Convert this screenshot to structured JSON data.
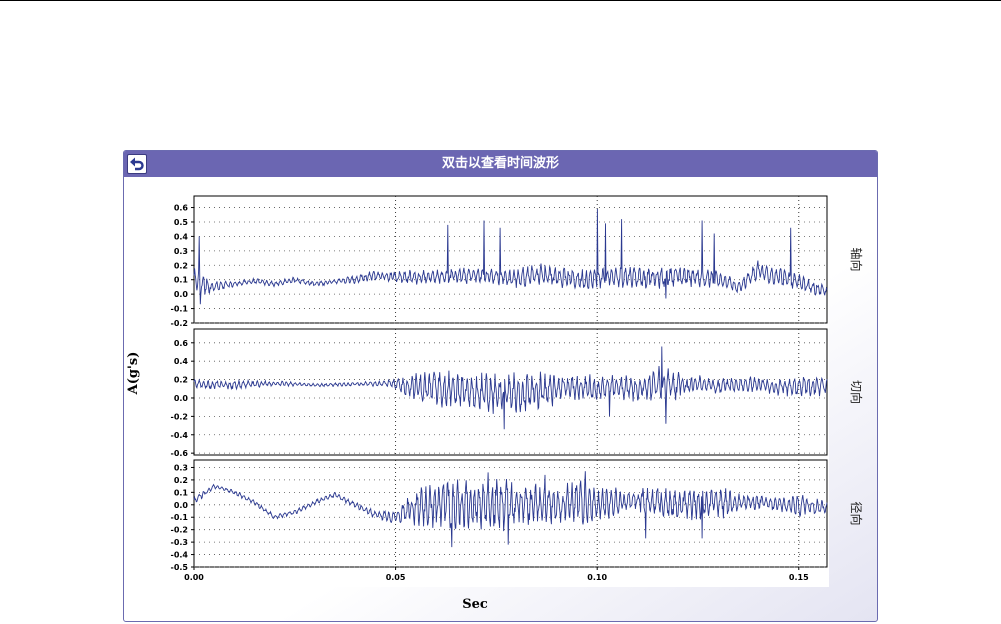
{
  "window": {
    "title": "双击以查看时间波形",
    "back_icon": "back-arrow-icon"
  },
  "colors": {
    "titlebar": "#6b66b2",
    "trace": "#2b3990",
    "panel_border": "#6b6bb0"
  },
  "chart_data": {
    "type": "line",
    "xlabel": "Sec",
    "ylabel": "A(g's)",
    "xlim": [
      0,
      0.157
    ],
    "xticks": [
      0.0,
      0.05,
      0.1,
      0.15
    ],
    "xtick_labels": [
      "0.00",
      "0.05",
      "0.10",
      "0.15"
    ],
    "grid": true,
    "panels": [
      {
        "name": "轴向",
        "ylim": [
          -0.2,
          0.68
        ],
        "yticks": [
          -0.2,
          -0.1,
          0.0,
          0.1,
          0.2,
          0.3,
          0.4,
          0.5,
          0.6
        ],
        "ytick_labels": [
          "-0.2",
          "-0.1",
          "0.0",
          "0.1",
          "0.2",
          "0.3",
          "0.4",
          "0.5",
          "0.6"
        ],
        "envelope": [
          [
            0.0,
            0.1,
            0.08
          ],
          [
            0.002,
            0.07,
            0.1
          ],
          [
            0.005,
            0.05,
            0.05
          ],
          [
            0.01,
            0.07,
            0.02
          ],
          [
            0.015,
            0.09,
            0.02
          ],
          [
            0.02,
            0.07,
            0.02
          ],
          [
            0.025,
            0.1,
            0.02
          ],
          [
            0.03,
            0.07,
            0.02
          ],
          [
            0.035,
            0.09,
            0.02
          ],
          [
            0.04,
            0.1,
            0.03
          ],
          [
            0.045,
            0.13,
            0.04
          ],
          [
            0.05,
            0.12,
            0.05
          ],
          [
            0.055,
            0.12,
            0.06
          ],
          [
            0.06,
            0.12,
            0.05
          ],
          [
            0.065,
            0.13,
            0.07
          ],
          [
            0.07,
            0.13,
            0.06
          ],
          [
            0.075,
            0.12,
            0.06
          ],
          [
            0.08,
            0.11,
            0.07
          ],
          [
            0.085,
            0.14,
            0.08
          ],
          [
            0.09,
            0.12,
            0.08
          ],
          [
            0.095,
            0.1,
            0.08
          ],
          [
            0.1,
            0.11,
            0.08
          ],
          [
            0.105,
            0.12,
            0.08
          ],
          [
            0.11,
            0.12,
            0.08
          ],
          [
            0.115,
            0.11,
            0.08
          ],
          [
            0.12,
            0.13,
            0.08
          ],
          [
            0.125,
            0.12,
            0.08
          ],
          [
            0.13,
            0.1,
            0.07
          ],
          [
            0.135,
            0.05,
            0.05
          ],
          [
            0.14,
            0.16,
            0.08
          ],
          [
            0.145,
            0.12,
            0.07
          ],
          [
            0.15,
            0.08,
            0.06
          ],
          [
            0.155,
            0.03,
            0.05
          ],
          [
            0.157,
            0.02,
            0.04
          ]
        ],
        "spikes": [
          [
            0.0013,
            0.4
          ],
          [
            0.0016,
            -0.07
          ],
          [
            0.063,
            0.48
          ],
          [
            0.072,
            0.51
          ],
          [
            0.076,
            0.46
          ],
          [
            0.1,
            0.59
          ],
          [
            0.102,
            0.49
          ],
          [
            0.106,
            0.52
          ],
          [
            0.117,
            -0.03
          ],
          [
            0.126,
            0.51
          ],
          [
            0.129,
            0.42
          ],
          [
            0.148,
            0.46
          ]
        ]
      },
      {
        "name": "切向",
        "ylim": [
          -0.62,
          0.75
        ],
        "yticks": [
          -0.6,
          -0.4,
          -0.2,
          0.0,
          0.2,
          0.4,
          0.6
        ],
        "ytick_labels": [
          "-0.6",
          "-0.4",
          "-0.2",
          "0.0",
          "0.2",
          "0.4",
          "0.6"
        ],
        "envelope": [
          [
            0.0,
            0.15,
            0.05
          ],
          [
            0.01,
            0.14,
            0.05
          ],
          [
            0.02,
            0.16,
            0.03
          ],
          [
            0.03,
            0.14,
            0.02
          ],
          [
            0.04,
            0.15,
            0.02
          ],
          [
            0.048,
            0.16,
            0.04
          ],
          [
            0.052,
            0.13,
            0.1
          ],
          [
            0.056,
            0.12,
            0.17
          ],
          [
            0.06,
            0.1,
            0.2
          ],
          [
            0.065,
            0.08,
            0.22
          ],
          [
            0.07,
            0.05,
            0.22
          ],
          [
            0.075,
            0.05,
            0.26
          ],
          [
            0.08,
            0.04,
            0.25
          ],
          [
            0.085,
            0.07,
            0.22
          ],
          [
            0.09,
            0.1,
            0.2
          ],
          [
            0.095,
            0.12,
            0.15
          ],
          [
            0.1,
            0.1,
            0.16
          ],
          [
            0.105,
            0.12,
            0.14
          ],
          [
            0.11,
            0.1,
            0.15
          ],
          [
            0.115,
            0.15,
            0.22
          ],
          [
            0.12,
            0.14,
            0.16
          ],
          [
            0.125,
            0.15,
            0.12
          ],
          [
            0.13,
            0.12,
            0.1
          ],
          [
            0.135,
            0.15,
            0.08
          ],
          [
            0.14,
            0.15,
            0.1
          ],
          [
            0.145,
            0.12,
            0.1
          ],
          [
            0.15,
            0.13,
            0.12
          ],
          [
            0.157,
            0.13,
            0.12
          ]
        ],
        "spikes": [
          [
            0.077,
            -0.34
          ],
          [
            0.103,
            -0.2
          ],
          [
            0.116,
            0.56
          ],
          [
            0.117,
            -0.28
          ]
        ]
      },
      {
        "name": "径向",
        "ylim": [
          -0.5,
          0.36
        ],
        "yticks": [
          -0.5,
          -0.4,
          -0.3,
          -0.2,
          -0.1,
          0.0,
          0.1,
          0.2,
          0.3
        ],
        "ytick_labels": [
          "-0.5",
          "-0.4",
          "-0.3",
          "-0.2",
          "-0.1",
          "0.0",
          "0.1",
          "0.2",
          "0.3"
        ],
        "envelope": [
          [
            0.0,
            0.03,
            0.03
          ],
          [
            0.005,
            0.15,
            0.02
          ],
          [
            0.01,
            0.1,
            0.02
          ],
          [
            0.015,
            0.02,
            0.02
          ],
          [
            0.02,
            -0.1,
            0.02
          ],
          [
            0.025,
            -0.06,
            0.02
          ],
          [
            0.03,
            0.02,
            0.02
          ],
          [
            0.035,
            0.08,
            0.02
          ],
          [
            0.04,
            0.0,
            0.03
          ],
          [
            0.045,
            -0.08,
            0.04
          ],
          [
            0.05,
            -0.1,
            0.06
          ],
          [
            0.055,
            -0.02,
            0.15
          ],
          [
            0.06,
            0.0,
            0.2
          ],
          [
            0.065,
            0.0,
            0.24
          ],
          [
            0.07,
            0.0,
            0.2
          ],
          [
            0.075,
            0.0,
            0.25
          ],
          [
            0.08,
            0.0,
            0.18
          ],
          [
            0.085,
            0.0,
            0.18
          ],
          [
            0.09,
            0.0,
            0.15
          ],
          [
            0.095,
            0.02,
            0.2
          ],
          [
            0.1,
            0.0,
            0.15
          ],
          [
            0.105,
            0.02,
            0.12
          ],
          [
            0.11,
            0.04,
            0.1
          ],
          [
            0.115,
            0.02,
            0.12
          ],
          [
            0.12,
            0.0,
            0.15
          ],
          [
            0.125,
            0.0,
            0.12
          ],
          [
            0.13,
            0.02,
            0.15
          ],
          [
            0.135,
            0.02,
            0.08
          ],
          [
            0.14,
            0.02,
            0.06
          ],
          [
            0.145,
            0.0,
            0.06
          ],
          [
            0.15,
            0.0,
            0.1
          ],
          [
            0.157,
            -0.02,
            0.05
          ]
        ],
        "spikes": [
          [
            0.064,
            -0.34
          ],
          [
            0.073,
            0.26
          ],
          [
            0.078,
            -0.32
          ],
          [
            0.087,
            0.24
          ],
          [
            0.097,
            0.27
          ],
          [
            0.112,
            -0.27
          ],
          [
            0.126,
            -0.27
          ]
        ]
      }
    ]
  }
}
